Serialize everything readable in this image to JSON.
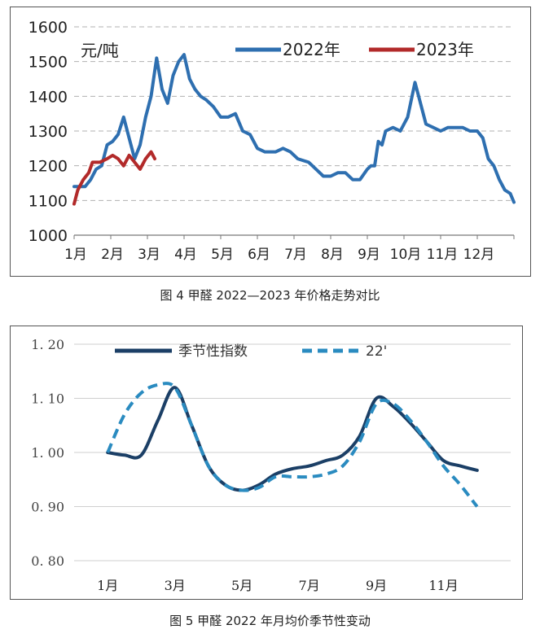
{
  "chart_data": [
    {
      "type": "line",
      "title": "图 4  甲醛 2022—2023 年价格走势对比",
      "ylabel": "元/吨",
      "ylim": [
        1000,
        1600
      ],
      "yticks": [
        1000,
        1100,
        1200,
        1300,
        1400,
        1500,
        1600
      ],
      "categories": [
        "1月",
        "2月",
        "3月",
        "4月",
        "5月",
        "6月",
        "7月",
        "8月",
        "9月",
        "10月",
        "11月",
        "12月"
      ],
      "grid": true,
      "legend": "top",
      "series": [
        {
          "name": "2022年",
          "color": "#2e6fb0",
          "points": [
            [
              1.0,
              1140
            ],
            [
              1.15,
              1140
            ],
            [
              1.3,
              1140
            ],
            [
              1.45,
              1160
            ],
            [
              1.6,
              1190
            ],
            [
              1.75,
              1200
            ],
            [
              1.9,
              1260
            ],
            [
              2.05,
              1270
            ],
            [
              2.2,
              1290
            ],
            [
              2.35,
              1340
            ],
            [
              2.5,
              1280
            ],
            [
              2.65,
              1220
            ],
            [
              2.8,
              1260
            ],
            [
              2.95,
              1340
            ],
            [
              3.1,
              1400
            ],
            [
              3.25,
              1510
            ],
            [
              3.4,
              1420
            ],
            [
              3.55,
              1380
            ],
            [
              3.7,
              1460
            ],
            [
              3.85,
              1500
            ],
            [
              4.0,
              1520
            ],
            [
              4.15,
              1450
            ],
            [
              4.3,
              1420
            ],
            [
              4.45,
              1400
            ],
            [
              4.6,
              1390
            ],
            [
              4.8,
              1370
            ],
            [
              5.0,
              1340
            ],
            [
              5.2,
              1340
            ],
            [
              5.4,
              1350
            ],
            [
              5.6,
              1300
            ],
            [
              5.8,
              1290
            ],
            [
              6.0,
              1250
            ],
            [
              6.2,
              1240
            ],
            [
              6.5,
              1240
            ],
            [
              6.7,
              1250
            ],
            [
              6.9,
              1240
            ],
            [
              7.1,
              1220
            ],
            [
              7.4,
              1210
            ],
            [
              7.6,
              1190
            ],
            [
              7.8,
              1170
            ],
            [
              8.0,
              1170
            ],
            [
              8.2,
              1180
            ],
            [
              8.4,
              1180
            ],
            [
              8.6,
              1160
            ],
            [
              8.8,
              1160
            ],
            [
              9.0,
              1190
            ],
            [
              9.1,
              1200
            ],
            [
              9.2,
              1200
            ],
            [
              9.3,
              1270
            ],
            [
              9.4,
              1260
            ],
            [
              9.5,
              1300
            ],
            [
              9.7,
              1310
            ],
            [
              9.9,
              1300
            ],
            [
              10.1,
              1340
            ],
            [
              10.2,
              1390
            ],
            [
              10.3,
              1440
            ],
            [
              10.4,
              1400
            ],
            [
              10.6,
              1320
            ],
            [
              10.8,
              1310
            ],
            [
              11.0,
              1300
            ],
            [
              11.2,
              1310
            ],
            [
              11.4,
              1310
            ],
            [
              11.6,
              1310
            ],
            [
              11.8,
              1300
            ],
            [
              12.0,
              1300
            ],
            [
              12.15,
              1280
            ],
            [
              12.3,
              1220
            ],
            [
              12.45,
              1200
            ],
            [
              12.6,
              1160
            ],
            [
              12.75,
              1130
            ],
            [
              12.9,
              1120
            ],
            [
              13.0,
              1095
            ]
          ]
        },
        {
          "name": "2023年",
          "color": "#b22a2a",
          "points": [
            [
              1.0,
              1090
            ],
            [
              1.1,
              1130
            ],
            [
              1.25,
              1160
            ],
            [
              1.4,
              1180
            ],
            [
              1.5,
              1210
            ],
            [
              1.7,
              1210
            ],
            [
              1.9,
              1220
            ],
            [
              2.05,
              1230
            ],
            [
              2.2,
              1220
            ],
            [
              2.35,
              1200
            ],
            [
              2.5,
              1230
            ],
            [
              2.65,
              1210
            ],
            [
              2.8,
              1190
            ],
            [
              2.95,
              1220
            ],
            [
              3.1,
              1240
            ],
            [
              3.2,
              1220
            ]
          ]
        }
      ]
    },
    {
      "type": "line",
      "title": "图 5  甲醛 2022 年月均价季节性变动",
      "ylim": [
        0.8,
        1.2
      ],
      "yticks": [
        "0. 80",
        "0. 90",
        "1. 00",
        "1. 10",
        "1. 20"
      ],
      "ytick_values": [
        0.8,
        0.9,
        1.0,
        1.1,
        1.2
      ],
      "xticks": [
        "1月",
        "3月",
        "5月",
        "7月",
        "9月",
        "11月"
      ],
      "xtick_values": [
        1,
        3,
        5,
        7,
        9,
        11
      ],
      "grid": true,
      "legend": "top",
      "series": [
        {
          "name": "季节性指数",
          "color": "#1b3f66",
          "style": "solid",
          "x": [
            1,
            1.5,
            2,
            2.5,
            3,
            3.5,
            4,
            4.5,
            5,
            5.5,
            6,
            6.5,
            7,
            7.5,
            8,
            8.5,
            9,
            9.5,
            10,
            10.5,
            11,
            11.5,
            12
          ],
          "y": [
            1.0,
            0.995,
            0.995,
            1.06,
            1.12,
            1.05,
            0.975,
            0.94,
            0.93,
            0.94,
            0.96,
            0.97,
            0.975,
            0.985,
            0.995,
            1.03,
            1.1,
            1.085,
            1.055,
            1.02,
            0.985,
            0.975,
            0.967
          ]
        },
        {
          "name": "22'",
          "color": "#2a8bc0",
          "style": "dashed",
          "x": [
            1,
            1.5,
            2,
            2.5,
            3,
            3.5,
            4,
            4.5,
            5,
            5.5,
            6,
            6.5,
            7,
            7.5,
            8,
            8.5,
            9,
            9.5,
            10,
            10.5,
            11,
            11.5,
            12
          ],
          "y": [
            1.0,
            1.07,
            1.11,
            1.125,
            1.12,
            1.05,
            0.975,
            0.94,
            0.93,
            0.935,
            0.955,
            0.955,
            0.955,
            0.96,
            0.975,
            1.02,
            1.09,
            1.09,
            1.06,
            1.02,
            0.975,
            0.94,
            0.9
          ]
        }
      ]
    }
  ]
}
